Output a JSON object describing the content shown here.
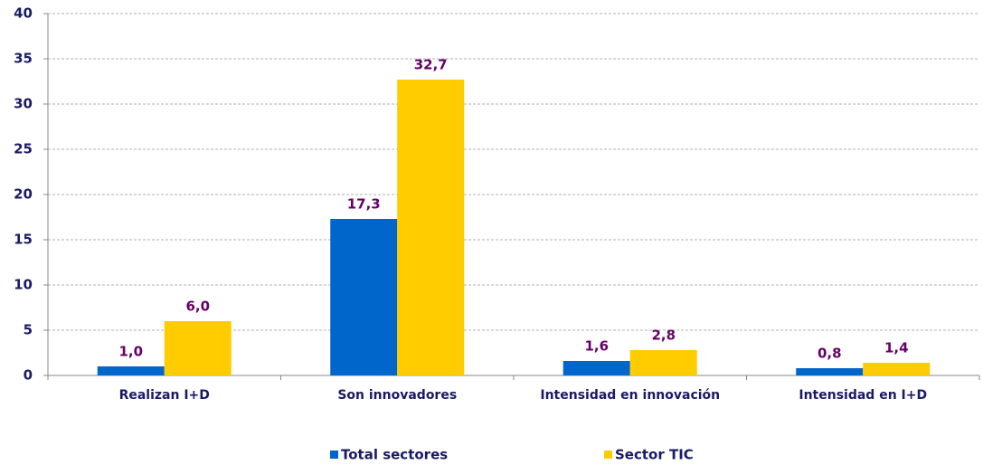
{
  "chart_data": {
    "type": "bar",
    "categories": [
      "Realizan I+D",
      "Son innovadores",
      "Intensidad en innovación",
      "Intensidad en I+D"
    ],
    "series": [
      {
        "name": "Total sectores",
        "color": "#0066cc",
        "values": [
          1.0,
          17.3,
          1.6,
          0.8
        ],
        "value_labels": [
          "1,0",
          "17,3",
          "1,6",
          "0,8"
        ]
      },
      {
        "name": "Sector TIC",
        "color": "#ffcc00",
        "values": [
          6.0,
          32.7,
          2.8,
          1.4
        ],
        "value_labels": [
          "6,0",
          "32,7",
          "2,8",
          "1,4"
        ]
      }
    ],
    "ylim": [
      0,
      40
    ],
    "yticks": [
      0,
      5,
      10,
      15,
      20,
      25,
      30,
      35,
      40
    ],
    "grid": true,
    "legend": "bottom"
  }
}
